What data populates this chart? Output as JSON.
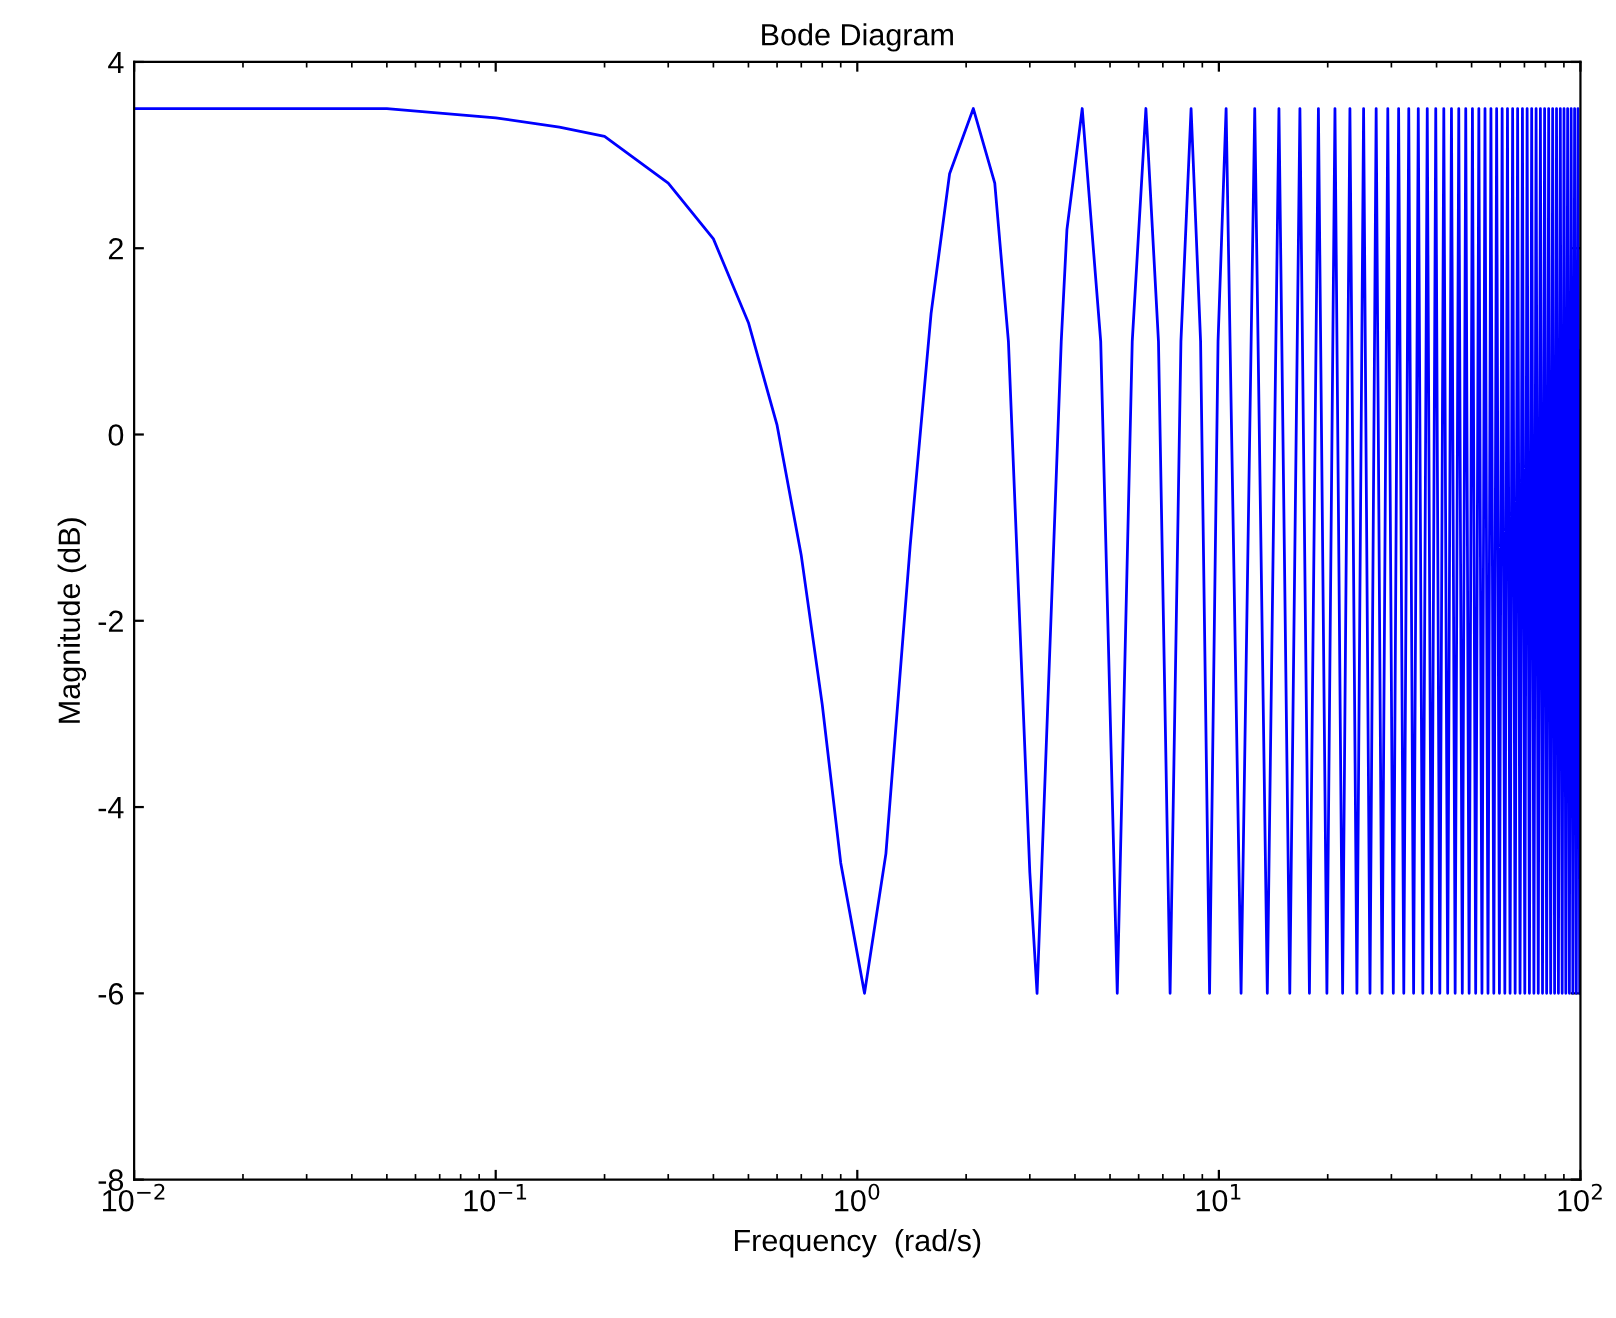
{
  "chart_data": {
    "type": "line",
    "title": "Bode Diagram",
    "xlabel": "Frequency  (rad/s)",
    "ylabel": "Magnitude (dB)",
    "log": "x",
    "grid": false,
    "marker": "none",
    "line_style": "solid",
    "xlim": [
      0.01,
      100
    ],
    "xticks": [
      {
        "value": 0.01,
        "label": "10$^{−2}$"
      },
      {
        "value": 0.1,
        "label": "10$^{−1}$"
      },
      {
        "value": 1,
        "label": "10$^{0}$"
      },
      {
        "value": 10,
        "label": "10$^{1}$"
      },
      {
        "value": 100,
        "label": "10$^{2}$"
      }
    ],
    "ylim": [
      -8,
      4
    ],
    "yticks": [
      -8,
      -6,
      -4,
      -2,
      0,
      2,
      4
    ],
    "series": [
      {
        "color": "#0000ff",
        "x": [
          0.01,
          0.03,
          0.05,
          0.1,
          0.15,
          0.2,
          0.3,
          0.4,
          0.5,
          0.6,
          0.7,
          0.8,
          0.9,
          1.047,
          1.2,
          1.4,
          1.6,
          1.8,
          2.094,
          2.4,
          2.618,
          3.0,
          3.142,
          3.5,
          3.665,
          3.8,
          4.189,
          4.712,
          5.236,
          5.76,
          6.283,
          6.807,
          7.33,
          7.854,
          8.378,
          8.901,
          9.425,
          9.948,
          10.472,
          11.519,
          12.566,
          13.614,
          14.661,
          15.708,
          16.755,
          17.802,
          18.85,
          19.897,
          20.944,
          21.991,
          23.038,
          24.086,
          25.133,
          26.18,
          27.227,
          28.274,
          29.322,
          30.369,
          31.416,
          32.463,
          33.51,
          34.558,
          35.605,
          36.652,
          37.699,
          38.746,
          39.794,
          40.841,
          41.888,
          42.935,
          43.982,
          45.029,
          46.077,
          47.124,
          48.171,
          49.218,
          50.265,
          51.313,
          52.36,
          53.407,
          54.454,
          55.501,
          56.549,
          57.596,
          58.643,
          59.69,
          60.738,
          61.785,
          62.832,
          63.879,
          64.926,
          65.973,
          67.021,
          68.068,
          69.115,
          70.162,
          71.209,
          72.257,
          73.304,
          74.351,
          75.398,
          76.445,
          77.493,
          78.54,
          79.587,
          80.634,
          81.681,
          82.729,
          83.776,
          84.823,
          85.87,
          86.917,
          87.965,
          89.012,
          90.059,
          91.106,
          92.153,
          93.201,
          94.248,
          95.295,
          96.342,
          97.389,
          98.437,
          99.484,
          100
        ],
        "values": [
          3.5,
          3.5,
          3.5,
          3.4,
          3.3,
          3.2,
          2.7,
          2.1,
          1.2,
          0.1,
          -1.3,
          -2.9,
          -4.6,
          -6.0,
          -4.5,
          -1.2,
          1.3,
          2.8,
          3.5,
          2.7,
          1.0,
          -4.7,
          -6.0,
          -1.1,
          1.0,
          2.2,
          3.5,
          1.0,
          -6.0,
          1.0,
          3.5,
          1.0,
          -6.0,
          1.0,
          3.5,
          1.0,
          -6.0,
          1.0,
          3.5,
          -6.0,
          3.5,
          -6.0,
          3.5,
          -6.0,
          3.5,
          -6.0,
          3.5,
          -6.0,
          3.5,
          -6.0,
          3.5,
          -6.0,
          3.5,
          -6.0,
          3.5,
          -6.0,
          3.5,
          -6.0,
          3.5,
          -6.0,
          3.5,
          -6.0,
          3.5,
          -6.0,
          3.5,
          -6.0,
          3.5,
          -6.0,
          3.5,
          -6.0,
          3.5,
          -6.0,
          3.5,
          -6.0,
          3.5,
          -6.0,
          3.5,
          -6.0,
          3.5,
          -6.0,
          3.5,
          -6.0,
          3.5,
          -6.0,
          3.5,
          -6.0,
          3.5,
          -6.0,
          3.5,
          -6.0,
          3.5,
          -6.0,
          3.5,
          -6.0,
          3.5,
          -6.0,
          3.5,
          -6.0,
          3.5,
          -6.0,
          3.5,
          -6.0,
          3.5,
          -6.0,
          3.5,
          -6.0,
          3.5,
          -6.0,
          3.5,
          -6.0,
          3.5,
          -6.0,
          3.5,
          -6.0,
          3.5,
          -6.0,
          3.5,
          -6.0,
          3.5,
          -6.0,
          3.5,
          -6.0,
          3.5,
          -6.0,
          0.9
        ]
      }
    ]
  }
}
